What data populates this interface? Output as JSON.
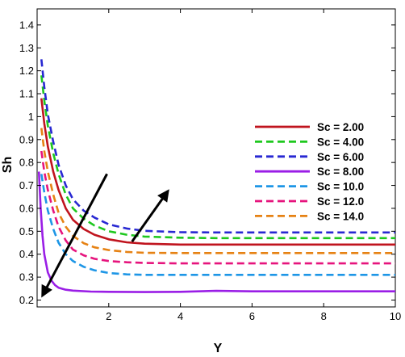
{
  "chart_data": {
    "type": "line",
    "xlabel": "Y",
    "ylabel": "Sh",
    "xlim": [
      0,
      10
    ],
    "ylim": [
      0.17,
      1.47
    ],
    "x_ticks": [
      2,
      4,
      6,
      8,
      10
    ],
    "y_ticks": [
      0.2,
      0.3,
      0.4,
      0.5,
      0.6,
      0.7,
      0.8,
      0.9,
      1,
      1.1,
      1.2,
      1.3,
      1.4
    ],
    "y_tick_labels": [
      "0.2",
      "0.3",
      "0.4",
      "0.5",
      "0.6",
      "0.7",
      "0.8",
      "0.9",
      "1",
      "1.1",
      "1.2",
      "1.3",
      "1.4"
    ],
    "x_tick_labels": [
      "2",
      "4",
      "6",
      "8",
      "10"
    ],
    "legend_position": "right-middle",
    "grid": false,
    "series": [
      {
        "name": "Sc = 2.00",
        "color": "#c0141e",
        "dash": "solid",
        "x": [
          0.12,
          0.2,
          0.3,
          0.45,
          0.6,
          0.8,
          1.0,
          1.3,
          1.6,
          2.0,
          2.5,
          3.0,
          4.0,
          5.0,
          6.0,
          8.0,
          10.0
        ],
        "y": [
          1.08,
          0.97,
          0.87,
          0.76,
          0.68,
          0.6,
          0.55,
          0.51,
          0.485,
          0.465,
          0.452,
          0.446,
          0.442,
          0.442,
          0.442,
          0.442,
          0.442
        ]
      },
      {
        "name": "Sc = 4.00",
        "color": "#1ec81e",
        "dash": "dashed",
        "x": [
          0.12,
          0.2,
          0.3,
          0.45,
          0.6,
          0.8,
          1.0,
          1.3,
          1.6,
          2.0,
          2.5,
          3.0,
          4.0,
          5.0,
          6.0,
          8.0,
          10.0
        ],
        "y": [
          1.18,
          1.07,
          0.96,
          0.84,
          0.75,
          0.66,
          0.6,
          0.555,
          0.525,
          0.5,
          0.485,
          0.477,
          0.472,
          0.47,
          0.47,
          0.47,
          0.47
        ]
      },
      {
        "name": "Sc = 6.00",
        "color": "#2828d2",
        "dash": "dashed",
        "x": [
          0.12,
          0.2,
          0.3,
          0.45,
          0.6,
          0.8,
          1.0,
          1.3,
          1.6,
          2.0,
          2.5,
          3.0,
          4.0,
          5.0,
          6.0,
          8.0,
          10.0
        ],
        "y": [
          1.25,
          1.13,
          1.01,
          0.89,
          0.79,
          0.7,
          0.64,
          0.59,
          0.56,
          0.53,
          0.512,
          0.502,
          0.496,
          0.495,
          0.495,
          0.495,
          0.495
        ]
      },
      {
        "name": "Sc = 8.00",
        "color": "#9a1ee6",
        "dash": "solid",
        "x": [
          0.05,
          0.1,
          0.15,
          0.2,
          0.3,
          0.4,
          0.5,
          0.6,
          0.8,
          1.0,
          1.5,
          2.0,
          3.0,
          4.0,
          4.5,
          5.0,
          6.0,
          8.0,
          10.0
        ],
        "y": [
          0.76,
          0.6,
          0.48,
          0.4,
          0.32,
          0.285,
          0.265,
          0.254,
          0.245,
          0.241,
          0.237,
          0.236,
          0.235,
          0.236,
          0.238,
          0.24,
          0.238,
          0.238,
          0.238
        ]
      },
      {
        "name": "Sc = 10.0",
        "color": "#1e96e6",
        "dash": "dashed",
        "x": [
          0.12,
          0.2,
          0.3,
          0.45,
          0.6,
          0.8,
          1.0,
          1.3,
          1.6,
          2.0,
          2.5,
          3.0,
          4.0,
          5.0,
          6.0,
          8.0,
          10.0
        ],
        "y": [
          0.75,
          0.67,
          0.59,
          0.51,
          0.45,
          0.4,
          0.37,
          0.345,
          0.33,
          0.318,
          0.312,
          0.31,
          0.31,
          0.31,
          0.31,
          0.31,
          0.31
        ]
      },
      {
        "name": "Sc = 12.0",
        "color": "#e6147d",
        "dash": "dashed",
        "x": [
          0.12,
          0.2,
          0.3,
          0.45,
          0.6,
          0.8,
          1.0,
          1.3,
          1.6,
          2.0,
          2.5,
          3.0,
          4.0,
          5.0,
          6.0,
          8.0,
          10.0
        ],
        "y": [
          0.85,
          0.76,
          0.68,
          0.59,
          0.52,
          0.46,
          0.42,
          0.395,
          0.38,
          0.37,
          0.365,
          0.362,
          0.36,
          0.36,
          0.36,
          0.36,
          0.36
        ]
      },
      {
        "name": "Sc = 14.0",
        "color": "#e68214",
        "dash": "dashed",
        "x": [
          0.12,
          0.2,
          0.3,
          0.45,
          0.6,
          0.8,
          1.0,
          1.3,
          1.6,
          2.0,
          2.5,
          3.0,
          4.0,
          5.0,
          6.0,
          8.0,
          10.0
        ],
        "y": [
          0.95,
          0.85,
          0.76,
          0.66,
          0.58,
          0.52,
          0.48,
          0.448,
          0.43,
          0.418,
          0.41,
          0.406,
          0.405,
          0.405,
          0.405,
          0.405,
          0.405
        ]
      }
    ],
    "annotations": [
      {
        "type": "arrow",
        "from": [
          1.95,
          0.75
        ],
        "to": [
          0.15,
          0.22
        ]
      },
      {
        "type": "arrow",
        "from": [
          2.65,
          0.455
        ],
        "to": [
          3.65,
          0.675
        ]
      }
    ]
  }
}
